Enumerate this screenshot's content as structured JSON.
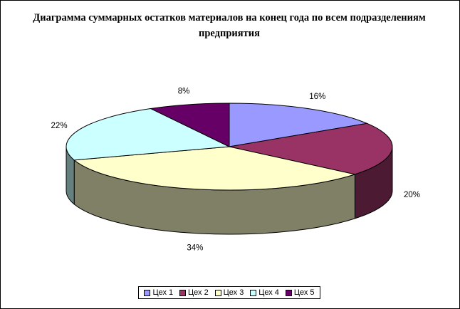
{
  "chart_data": {
    "type": "pie",
    "title": "Диаграмма суммарных остатков материалов на конец года по всем подразделениям предприятия",
    "categories": [
      "Цех 1",
      "Цех 2",
      "Цех 3",
      "Цех 4",
      "Цех 5"
    ],
    "values": [
      16,
      20,
      34,
      22,
      8
    ],
    "value_labels": [
      "16%",
      "20%",
      "34%",
      "22%",
      "8%"
    ],
    "colors": [
      "#9999ff",
      "#993366",
      "#ffffcc",
      "#ccffff",
      "#660066"
    ],
    "legend_position": "bottom",
    "three_d": true
  }
}
